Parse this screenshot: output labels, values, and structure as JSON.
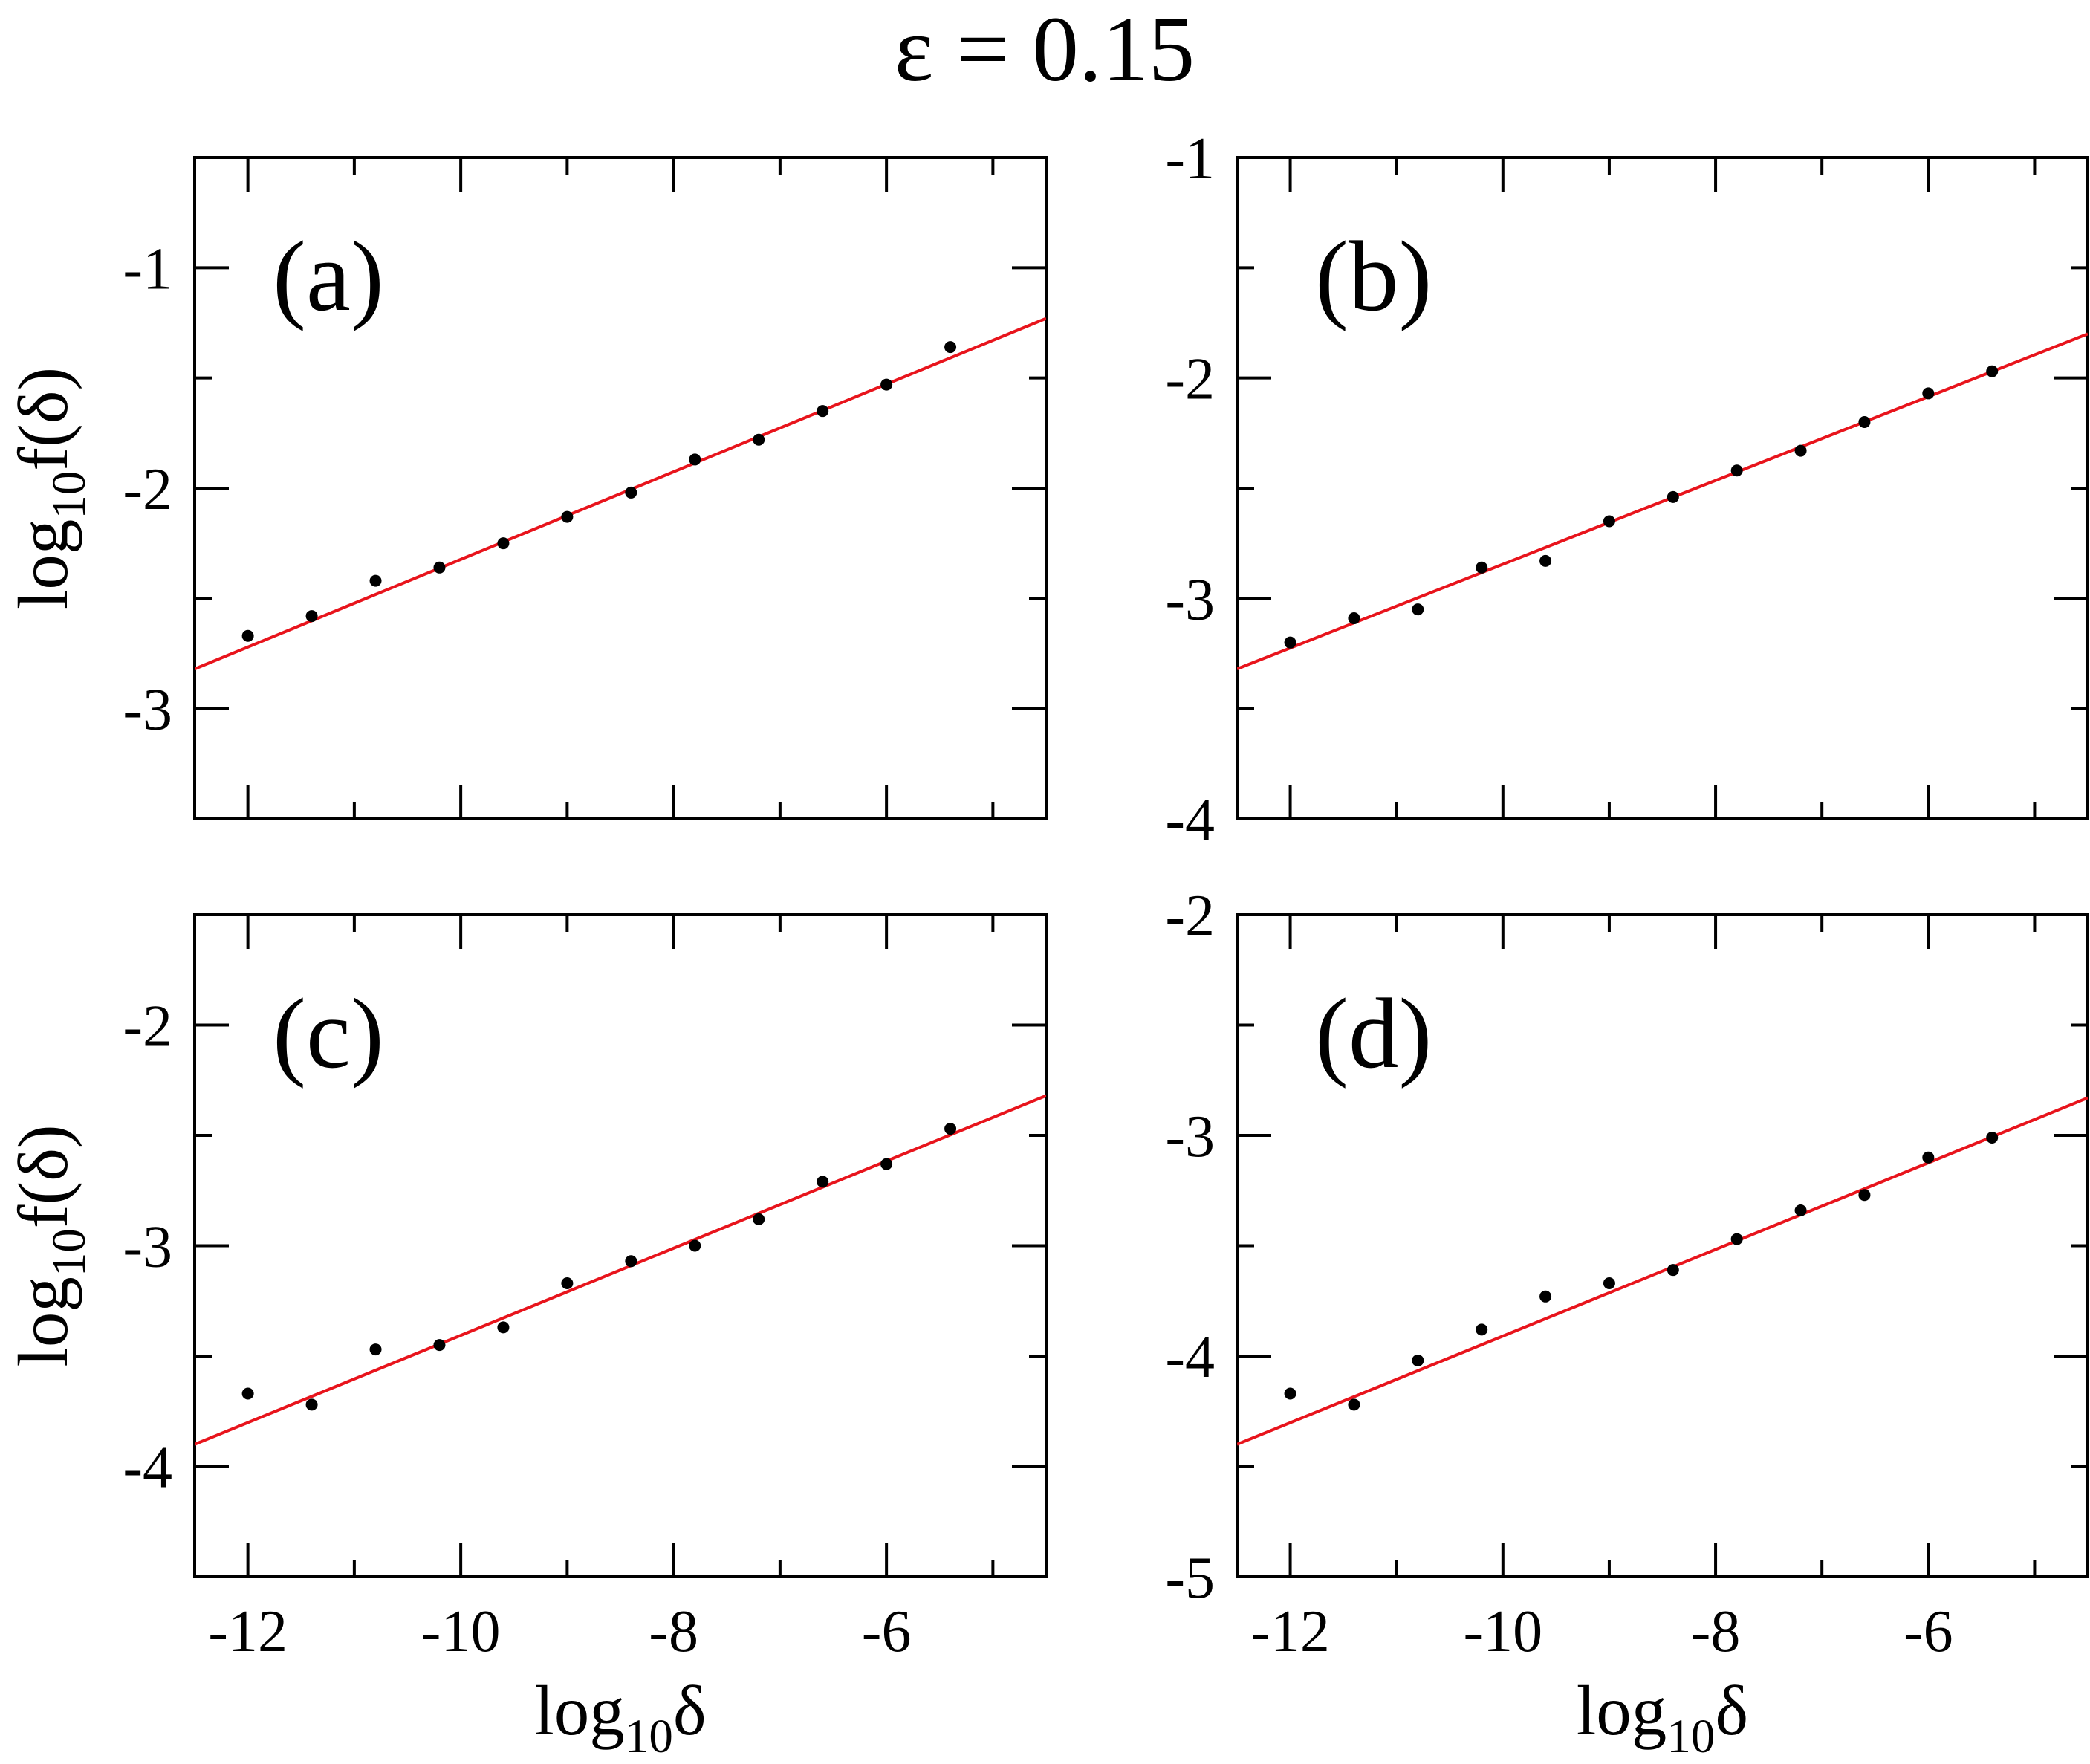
{
  "figure": {
    "title": "ε = 0.15",
    "colors": {
      "points": "#000000",
      "fit": "#e8141c",
      "axes": "#000000"
    }
  },
  "chart_data": [
    {
      "type": "scatter",
      "panel_label": "(a)",
      "xlabel": "",
      "ylabel": "log10f(δ)",
      "ylabel_parts": {
        "base": "log",
        "sub": "10",
        "rest": "f(δ)"
      },
      "xlim": [
        -12.5,
        -4.5
      ],
      "ylim": [
        -3.5,
        -0.5
      ],
      "xticks": [
        -12,
        -10,
        -8,
        -6
      ],
      "xtick_labels": [],
      "yticks": [
        -3,
        -2,
        -1
      ],
      "ytick_labels": [
        "-3",
        "-2",
        "-1"
      ],
      "series": [
        {
          "kind": "points",
          "x": [
            -12,
            -11.4,
            -10.8,
            -10.2,
            -9.6,
            -9,
            -8.4,
            -7.8,
            -7.2,
            -6.6,
            -6,
            -5.4
          ],
          "y": [
            -2.67,
            -2.58,
            -2.42,
            -2.36,
            -2.25,
            -2.13,
            -2.02,
            -1.87,
            -1.78,
            -1.65,
            -1.53,
            -1.36
          ]
        },
        {
          "kind": "fit_line",
          "x": [
            -12.5,
            -4.5
          ],
          "y": [
            -2.82,
            -1.23
          ]
        }
      ]
    },
    {
      "type": "scatter",
      "panel_label": "(b)",
      "xlabel": "",
      "ylabel": "",
      "xlim": [
        -12.5,
        -4.5
      ],
      "ylim": [
        -4,
        -1
      ],
      "xticks": [
        -12,
        -10,
        -8,
        -6
      ],
      "xtick_labels": [],
      "yticks": [
        -4,
        -3,
        -2,
        -1
      ],
      "ytick_labels": [
        "-4",
        "-3",
        "-2",
        "-1"
      ],
      "series": [
        {
          "kind": "points",
          "x": [
            -12,
            -11.4,
            -10.8,
            -10.2,
            -9.6,
            -9,
            -8.4,
            -7.8,
            -7.2,
            -6.6,
            -6,
            -5.4
          ],
          "y": [
            -3.2,
            -3.09,
            -3.05,
            -2.86,
            -2.83,
            -2.65,
            -2.54,
            -2.42,
            -2.33,
            -2.2,
            -2.07,
            -1.97
          ]
        },
        {
          "kind": "fit_line",
          "x": [
            -12.5,
            -4.5
          ],
          "y": [
            -3.32,
            -1.8
          ]
        }
      ]
    },
    {
      "type": "scatter",
      "panel_label": "(c)",
      "xlabel": "log10δ",
      "xlabel_parts": {
        "base": "log",
        "sub": "10",
        "rest": "δ"
      },
      "ylabel": "log10f(δ)",
      "ylabel_parts": {
        "base": "log",
        "sub": "10",
        "rest": "f(δ)"
      },
      "xlim": [
        -12.5,
        -4.5
      ],
      "ylim": [
        -4.5,
        -1.5
      ],
      "xticks": [
        -12,
        -10,
        -8,
        -6
      ],
      "xtick_labels": [
        "-12",
        "-10",
        "-8",
        "-6"
      ],
      "yticks": [
        -4,
        -3,
        -2
      ],
      "ytick_labels": [
        "-4",
        "-3",
        "-2"
      ],
      "series": [
        {
          "kind": "points",
          "x": [
            -12,
            -11.4,
            -10.8,
            -10.2,
            -9.6,
            -9,
            -8.4,
            -7.8,
            -7.2,
            -6.6,
            -6,
            -5.4
          ],
          "y": [
            -3.67,
            -3.72,
            -3.47,
            -3.45,
            -3.37,
            -3.17,
            -3.07,
            -3.0,
            -2.88,
            -2.71,
            -2.63,
            -2.47
          ]
        },
        {
          "kind": "fit_line",
          "x": [
            -12.5,
            -4.5
          ],
          "y": [
            -3.9,
            -2.32
          ]
        }
      ]
    },
    {
      "type": "scatter",
      "panel_label": "(d)",
      "xlabel": "log10δ",
      "xlabel_parts": {
        "base": "log",
        "sub": "10",
        "rest": "δ"
      },
      "ylabel": "",
      "xlim": [
        -12.5,
        -4.5
      ],
      "ylim": [
        -5,
        -2
      ],
      "xticks": [
        -12,
        -10,
        -8,
        -6
      ],
      "xtick_labels": [
        "-12",
        "-10",
        "-8",
        "-6"
      ],
      "yticks": [
        -5,
        -4,
        -3,
        -2
      ],
      "ytick_labels": [
        "-5",
        "-4",
        "-3",
        "-2"
      ],
      "series": [
        {
          "kind": "points",
          "x": [
            -12,
            -11.4,
            -10.8,
            -10.2,
            -9.6,
            -9,
            -8.4,
            -7.8,
            -7.2,
            -6.6,
            -6,
            -5.4
          ],
          "y": [
            -4.17,
            -4.22,
            -4.02,
            -3.88,
            -3.73,
            -3.67,
            -3.61,
            -3.47,
            -3.34,
            -3.27,
            -3.1,
            -3.01
          ]
        },
        {
          "kind": "fit_line",
          "x": [
            -12.5,
            -4.5
          ],
          "y": [
            -4.4,
            -2.83
          ]
        }
      ]
    }
  ]
}
